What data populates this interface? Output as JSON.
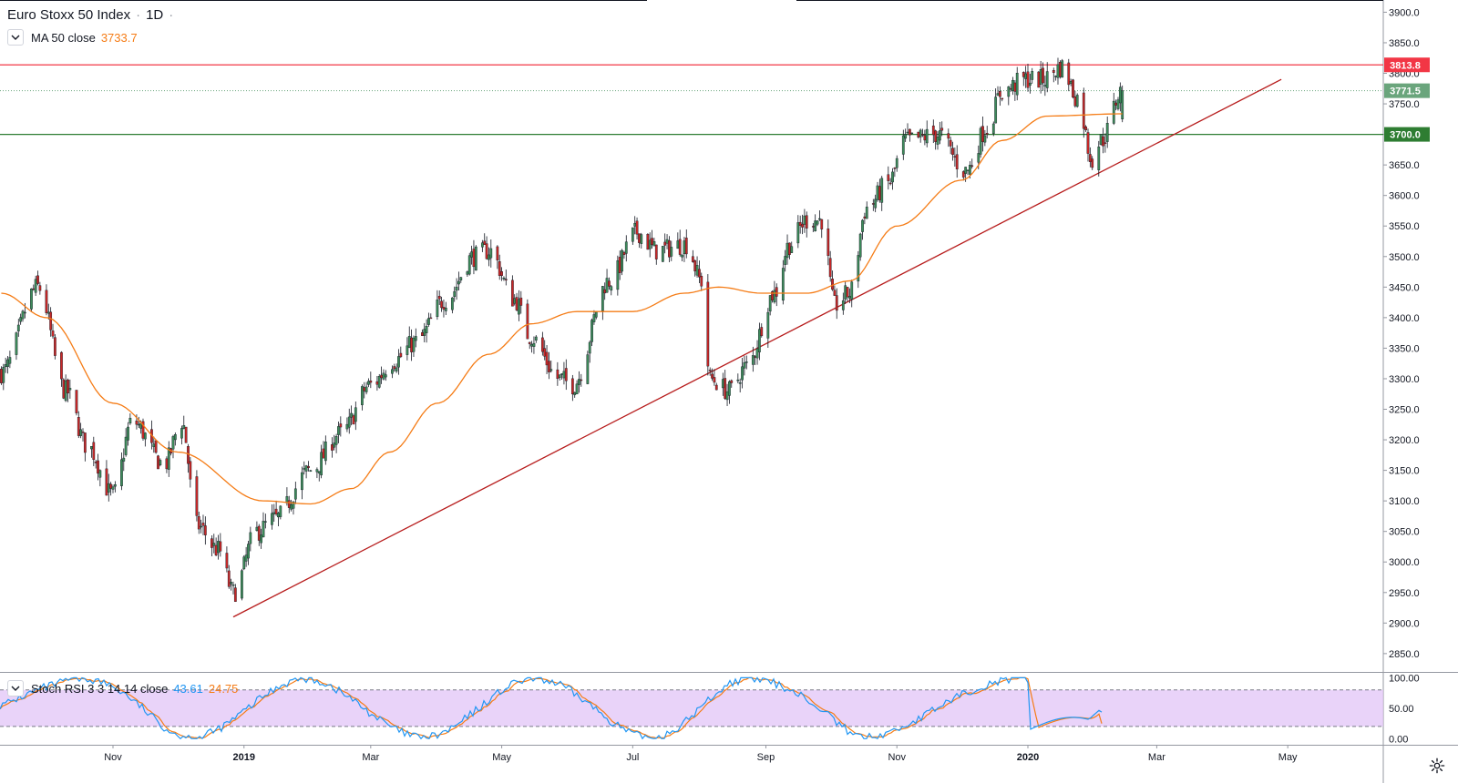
{
  "header": {
    "symbol": "Euro Stoxx 50 Index",
    "interval": "1D",
    "dot": "·"
  },
  "indicators": {
    "ma": {
      "label": "MA 50 close",
      "value": "3733.7",
      "color": "#f57c16"
    },
    "stoch_rsi": {
      "label": "Stoch RSI 3 3 14 14 close",
      "k_value": "43.61",
      "d_value": "24.75",
      "k_color": "#2196f3",
      "d_color": "#f57c16"
    }
  },
  "price_labels": {
    "resistance": {
      "value": "3813.8",
      "color": "#f23645"
    },
    "last": {
      "value": "3771.5",
      "color": "#6aa57c"
    },
    "support": {
      "value": "3700.0",
      "color": "#2e7d32"
    }
  },
  "chart_data": {
    "type": "candlestick",
    "title": "Euro Stoxx 50 Index",
    "y_axis": {
      "min": 2820,
      "max": 3920,
      "ticks": [
        2850,
        2900,
        2950,
        3000,
        3050,
        3100,
        3150,
        3200,
        3250,
        3300,
        3350,
        3400,
        3450,
        3500,
        3550,
        3600,
        3650,
        3700,
        3750,
        3800,
        3850,
        3900
      ]
    },
    "x_axis": {
      "labels": [
        "Nov",
        "2019",
        "Mar",
        "May",
        "Jul",
        "Sep",
        "Nov",
        "2020",
        "Mar",
        "May"
      ],
      "dates": [
        "2018-11-01",
        "2019-01-01",
        "2019-03-01",
        "2019-05-01",
        "2019-07-01",
        "2019-09-01",
        "2019-11-01",
        "2020-01-01",
        "2020-03-01",
        "2020-05-01"
      ]
    },
    "start_date": "2018-09-10",
    "end_date": "2020-02-14",
    "price_path": [
      [
        "2018-09-10",
        3310
      ],
      [
        "2018-09-27",
        3450
      ],
      [
        "2018-10-10",
        3280
      ],
      [
        "2018-10-20",
        3190
      ],
      [
        "2018-11-01",
        3110
      ],
      [
        "2018-11-10",
        3230
      ],
      [
        "2018-11-25",
        3160
      ],
      [
        "2018-12-03",
        3230
      ],
      [
        "2018-12-10",
        3060
      ],
      [
        "2018-12-20",
        3020
      ],
      [
        "2018-12-27",
        2950
      ],
      [
        "2019-01-07",
        3050
      ],
      [
        "2019-01-15",
        3070
      ],
      [
        "2019-02-01",
        3150
      ],
      [
        "2019-02-15",
        3210
      ],
      [
        "2019-03-01",
        3290
      ],
      [
        "2019-03-12",
        3330
      ],
      [
        "2019-03-22",
        3360
      ],
      [
        "2019-04-05",
        3430
      ],
      [
        "2019-04-18",
        3500
      ],
      [
        "2019-04-25",
        3510
      ],
      [
        "2019-05-07",
        3430
      ],
      [
        "2019-05-14",
        3370
      ],
      [
        "2019-05-28",
        3300
      ],
      [
        "2019-06-03",
        3290
      ],
      [
        "2019-06-20",
        3460
      ],
      [
        "2019-07-03",
        3540
      ],
      [
        "2019-07-12",
        3510
      ],
      [
        "2019-07-26",
        3520
      ],
      [
        "2019-08-02",
        3460
      ],
      [
        "2019-08-06",
        3300
      ],
      [
        "2019-08-15",
        3280
      ],
      [
        "2019-08-23",
        3320
      ],
      [
        "2019-09-05",
        3440
      ],
      [
        "2019-09-12",
        3520
      ],
      [
        "2019-09-20",
        3560
      ],
      [
        "2019-09-27",
        3560
      ],
      [
        "2019-10-03",
        3420
      ],
      [
        "2019-10-10",
        3440
      ],
      [
        "2019-10-18",
        3580
      ],
      [
        "2019-10-28",
        3620
      ],
      [
        "2019-11-05",
        3690
      ],
      [
        "2019-11-20",
        3700
      ],
      [
        "2019-12-03",
        3640
      ],
      [
        "2019-12-13",
        3710
      ],
      [
        "2019-12-20",
        3770
      ],
      [
        "2019-12-31",
        3790
      ],
      [
        "2020-01-08",
        3790
      ],
      [
        "2020-01-17",
        3810
      ],
      [
        "2020-01-24",
        3760
      ],
      [
        "2020-01-31",
        3660
      ],
      [
        "2020-02-04",
        3690
      ],
      [
        "2020-02-14",
        3771.5
      ]
    ],
    "ma50_path": [
      [
        "2018-09-10",
        3440
      ],
      [
        "2018-10-01",
        3400
      ],
      [
        "2018-11-01",
        3260
      ],
      [
        "2018-12-01",
        3180
      ],
      [
        "2019-01-10",
        3100
      ],
      [
        "2019-02-01",
        3095
      ],
      [
        "2019-02-20",
        3120
      ],
      [
        "2019-03-10",
        3180
      ],
      [
        "2019-04-01",
        3260
      ],
      [
        "2019-04-25",
        3340
      ],
      [
        "2019-05-15",
        3390
      ],
      [
        "2019-06-05",
        3410
      ],
      [
        "2019-07-01",
        3410
      ],
      [
        "2019-07-25",
        3440
      ],
      [
        "2019-08-10",
        3450
      ],
      [
        "2019-08-30",
        3440
      ],
      [
        "2019-09-20",
        3440
      ],
      [
        "2019-10-10",
        3460
      ],
      [
        "2019-11-01",
        3550
      ],
      [
        "2019-12-01",
        3625
      ],
      [
        "2019-12-20",
        3690
      ],
      [
        "2020-01-10",
        3730
      ],
      [
        "2020-02-14",
        3733.7
      ]
    ],
    "horizontal_lines": [
      {
        "price": 3813.8,
        "color": "#f23645",
        "style": "solid"
      },
      {
        "price": 3771.5,
        "color": "#6aa57c",
        "style": "dotted"
      },
      {
        "price": 3700.0,
        "color": "#2e7d32",
        "style": "solid"
      }
    ],
    "trendline": {
      "from": [
        "2018-12-27",
        2910
      ],
      "to": [
        "2020-04-28",
        3790
      ],
      "color": "#b71c1c"
    },
    "stoch_rsi": {
      "y_axis": {
        "min": -10,
        "max": 108,
        "ticks": [
          0,
          50,
          100
        ],
        "tick_labels": [
          "0.00",
          "50.00",
          "100.00"
        ]
      },
      "bands": [
        20,
        80
      ],
      "k_last": 43.61,
      "d_last": 24.75
    }
  }
}
